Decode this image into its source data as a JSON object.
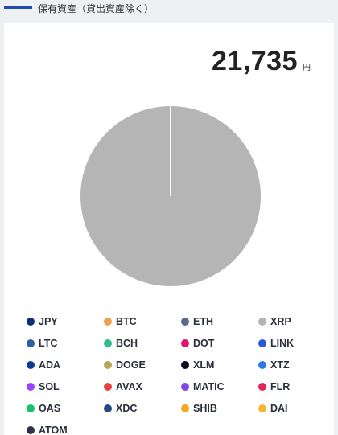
{
  "section": {
    "title": "保有資産（貸出資産除く）"
  },
  "total": {
    "amount": "21,735",
    "unit": "円"
  },
  "chart_data": {
    "type": "pie",
    "title": "",
    "slices": [
      {
        "label": "XRP",
        "value": 100,
        "color": "#b5b5b5"
      }
    ]
  },
  "legend": [
    {
      "label": "JPY",
      "color": "#0f2f7a"
    },
    {
      "label": "BTC",
      "color": "#f0a04b"
    },
    {
      "label": "ETH",
      "color": "#5c6a85"
    },
    {
      "label": "XRP",
      "color": "#b5b5b5"
    },
    {
      "label": "LTC",
      "color": "#2e5fa8"
    },
    {
      "label": "BCH",
      "color": "#2bbf8a"
    },
    {
      "label": "DOT",
      "color": "#e6106e"
    },
    {
      "label": "LINK",
      "color": "#2a5ad7"
    },
    {
      "label": "ADA",
      "color": "#0d3a96"
    },
    {
      "label": "DOGE",
      "color": "#b9a55a"
    },
    {
      "label": "XLM",
      "color": "#0c0c1e"
    },
    {
      "label": "XTZ",
      "color": "#2c7be5"
    },
    {
      "label": "SOL",
      "color": "#9945ff"
    },
    {
      "label": "AVAX",
      "color": "#e84142"
    },
    {
      "label": "MATIC",
      "color": "#8247e5"
    },
    {
      "label": "FLR",
      "color": "#e62058"
    },
    {
      "label": "OAS",
      "color": "#18c26b"
    },
    {
      "label": "XDC",
      "color": "#244b81"
    },
    {
      "label": "SHIB",
      "color": "#f5a623"
    },
    {
      "label": "DAI",
      "color": "#f4b731"
    },
    {
      "label": "ATOM",
      "color": "#2e3148"
    }
  ]
}
